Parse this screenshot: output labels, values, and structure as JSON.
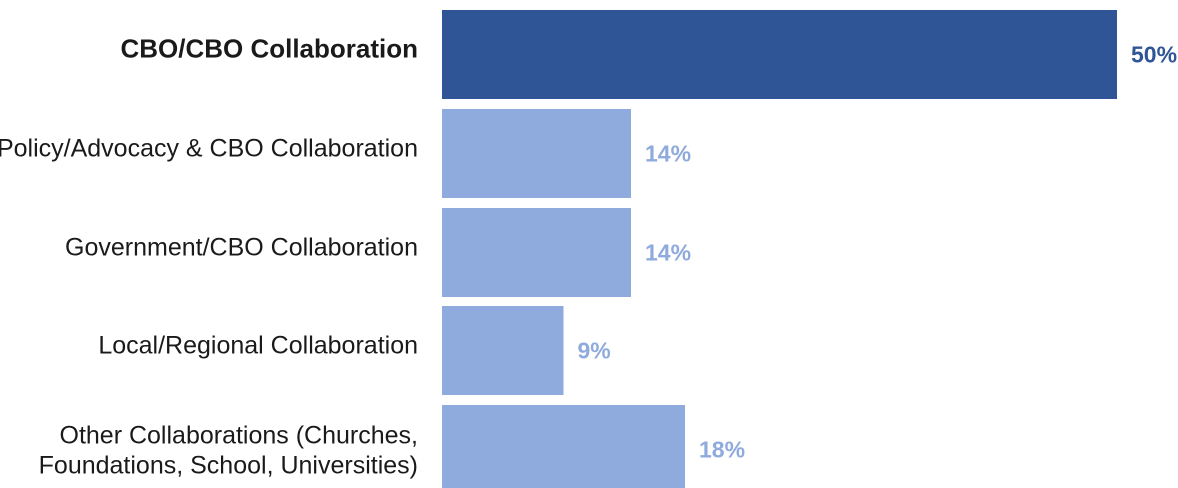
{
  "chart_data": {
    "type": "bar",
    "orientation": "horizontal",
    "categories": [
      [
        "CBO/CBO Collaboration"
      ],
      [
        "Policy/Advocacy & CBO Collaboration"
      ],
      [
        "Government/CBO Collaboration"
      ],
      [
        "Local/Regional Collaboration"
      ],
      [
        "Other Collaborations (Churches,",
        "Foundations, School, Universities)"
      ]
    ],
    "values": [
      50,
      14,
      14,
      9,
      18
    ],
    "value_labels": [
      "50%",
      "14%",
      "14%",
      "9%",
      "18%"
    ],
    "highlight_index": 0,
    "colors": {
      "highlight": "#2f5597",
      "normal": "#8faadc",
      "text": "#1a1a1a"
    },
    "xlim": [
      0,
      50
    ],
    "grid": false,
    "legend": "none"
  }
}
